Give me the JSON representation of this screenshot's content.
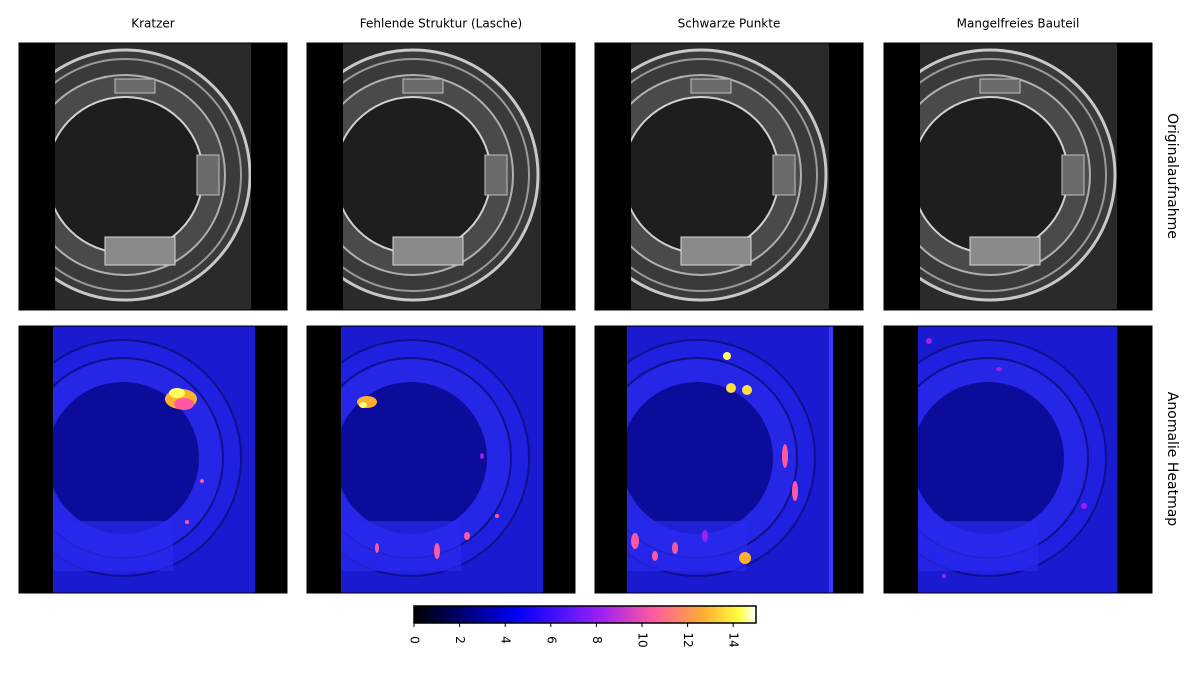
{
  "columns": [
    "Kratzer",
    "Fehlende Struktur (Lasche)",
    "Schwarze Punkte",
    "Mangelfreies Bauteil"
  ],
  "rows": [
    "Originalaufnahme",
    "Anomalie Heatmap"
  ],
  "colorbar": {
    "lim": [
      0,
      15
    ],
    "ticks": [
      0,
      2,
      4,
      6,
      8,
      10,
      12,
      14
    ]
  }
}
